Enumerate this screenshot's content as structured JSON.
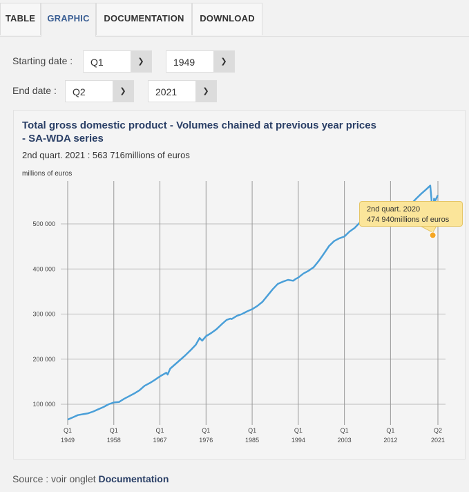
{
  "tabs": [
    {
      "label": "TABLE",
      "active": false
    },
    {
      "label": "GRAPHIC",
      "active": true
    },
    {
      "label": "DOCUMENTATION",
      "active": false
    },
    {
      "label": "DOWNLOAD",
      "active": false
    }
  ],
  "form": {
    "start_label": "Starting date :",
    "start_quarter": "Q1",
    "start_year": "1949",
    "end_label": "End date :",
    "end_quarter": "Q2",
    "end_year": "2021",
    "dropdown_icon": "chevron-down-icon"
  },
  "tooltip": {
    "line1": "2nd quart. 2020",
    "line2": "474 940millions of euros"
  },
  "source": {
    "prefix": "Source : voir onglet ",
    "link": "Documentation"
  },
  "colors": {
    "line": "#4a9fd8",
    "title": "#2a3f66",
    "tooltip_bg": "#fbe59a",
    "marker": "#f5a623",
    "active_tab": "#3b5f94"
  },
  "chart_data": {
    "type": "line",
    "title": "Total gross domestic product - Volumes chained at previous year prices - SA-WDA series",
    "subtitle": "2nd quart. 2021 : 563 716millions of euros",
    "ylabel": "millions of euros",
    "xlabel": "",
    "ylim": [
      55000,
      600000
    ],
    "xlim": [
      1949.0,
      2021.25
    ],
    "yticks": [
      100000,
      200000,
      300000,
      400000,
      500000
    ],
    "ytick_labels": [
      "100 000",
      "200 000",
      "300 000",
      "400 000",
      "500 000"
    ],
    "xticks": [
      1949.0,
      1958.0,
      1967.0,
      1976.0,
      1985.0,
      1994.0,
      2003.0,
      2012.0,
      2021.25
    ],
    "xtick_labels": [
      [
        "Q1",
        "1949"
      ],
      [
        "Q1",
        "1958"
      ],
      [
        "Q1",
        "1967"
      ],
      [
        "Q1",
        "1976"
      ],
      [
        "Q1",
        "1985"
      ],
      [
        "Q1",
        "1994"
      ],
      [
        "Q1",
        "2003"
      ],
      [
        "Q1",
        "2012"
      ],
      [
        "Q2",
        "2021"
      ]
    ],
    "grid": true,
    "legend": "none",
    "series": [
      {
        "name": "Total GDP",
        "x": [
          1949.0,
          1950,
          1951,
          1952,
          1953,
          1954,
          1955,
          1956,
          1957,
          1958,
          1959,
          1960,
          1961,
          1962,
          1963,
          1964,
          1965,
          1966,
          1967,
          1968.25,
          1968.5,
          1969,
          1970,
          1971,
          1972,
          1973,
          1974,
          1974.75,
          1975.25,
          1976,
          1977,
          1978,
          1979,
          1980,
          1980.75,
          1981,
          1982,
          1983,
          1984,
          1985,
          1986,
          1987,
          1988,
          1989,
          1990,
          1991,
          1992,
          1993,
          1993.5,
          1994,
          1995,
          1996,
          1997,
          1998,
          1999,
          2000,
          2001,
          2002,
          2003,
          2004,
          2005,
          2006,
          2007,
          2008,
          2009,
          2010,
          2011,
          2012,
          2013,
          2014,
          2015,
          2016,
          2017,
          2018,
          2019,
          2019.75,
          2020.0,
          2020.25,
          2020.5,
          2020.75,
          2021.0,
          2021.25
        ],
        "values": [
          66000,
          71000,
          76000,
          78000,
          80000,
          84000,
          89000,
          94000,
          100000,
          104000,
          105000,
          112000,
          118000,
          124000,
          131000,
          141000,
          147000,
          154000,
          162000,
          170000,
          166000,
          179000,
          189000,
          199000,
          209000,
          220000,
          232000,
          247000,
          241000,
          251000,
          258000,
          266000,
          277000,
          287000,
          290000,
          289000,
          296000,
          300000,
          306000,
          311000,
          318000,
          327000,
          341000,
          355000,
          367000,
          372000,
          376000,
          374000,
          378000,
          381000,
          390000,
          396000,
          404000,
          418000,
          434000,
          451000,
          462000,
          468000,
          472000,
          483000,
          491000,
          503000,
          515000,
          516000,
          500000,
          510000,
          522000,
          523000,
          524000,
          530000,
          537000,
          544000,
          556000,
          567000,
          577000,
          585000,
          555000,
          474940,
          556000,
          552000,
          558000,
          563716
        ]
      }
    ]
  }
}
